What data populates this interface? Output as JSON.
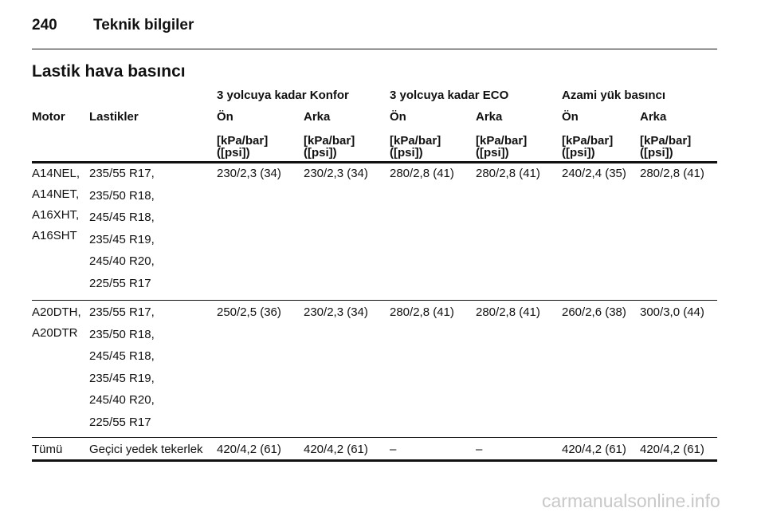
{
  "header": {
    "page_number": "240",
    "title": "Teknik bilgiler"
  },
  "section_title": "Lastik hava basıncı",
  "table": {
    "group_headers": [
      "3 yolcuya kadar Konfor",
      "3 yolcuya kadar ECO",
      "Azami yük basıncı"
    ],
    "column_headers": [
      "Motor",
      "Lastikler",
      "Ön",
      "Arka",
      "Ön",
      "Arka",
      "Ön",
      "Arka"
    ],
    "unit_headers": [
      [
        "[kPa/bar]",
        "([psi])"
      ],
      [
        "[kPa/bar]",
        "([psi])"
      ],
      [
        "[kPa/bar]",
        "([psi])"
      ],
      [
        "[kPa/bar]",
        "([psi])"
      ],
      [
        "[kPa/bar]",
        "([psi])"
      ],
      [
        "[kPa/bar]",
        "([psi])"
      ]
    ],
    "rows": [
      {
        "motor": [
          "A14NEL,",
          "A14NET,",
          "A16XHT,",
          "A16SHT"
        ],
        "tyres": [
          "235/55 R17,",
          "235/50 R18,",
          "245/45 R18,",
          "235/45 R19,",
          "245/40 R20,",
          "225/55 R17"
        ],
        "values": [
          "230/2,3 (34)",
          "230/2,3 (34)",
          "280/2,8 (41)",
          "280/2,8 (41)",
          "240/2,4 (35)",
          "280/2,8 (41)"
        ]
      },
      {
        "motor": [
          "A20DTH,",
          "A20DTR"
        ],
        "tyres": [
          "235/55 R17,",
          "235/50 R18,",
          "245/45 R18,",
          "235/45 R19,",
          "245/40 R20,",
          "225/55 R17"
        ],
        "values": [
          "250/2,5 (36)",
          "230/2,3 (34)",
          "280/2,8 (41)",
          "280/2,8 (41)",
          "260/2,6 (38)",
          "300/3,0 (44)"
        ]
      },
      {
        "motor": [
          "Tümü"
        ],
        "tyres": [
          "Geçici yedek tekerlek"
        ],
        "values": [
          "420/4,2 (61)",
          "420/4,2 (61)",
          "–",
          "–",
          "420/4,2 (61)",
          "420/4,2 (61)"
        ]
      }
    ]
  },
  "watermark": "carmanualsonline.info"
}
